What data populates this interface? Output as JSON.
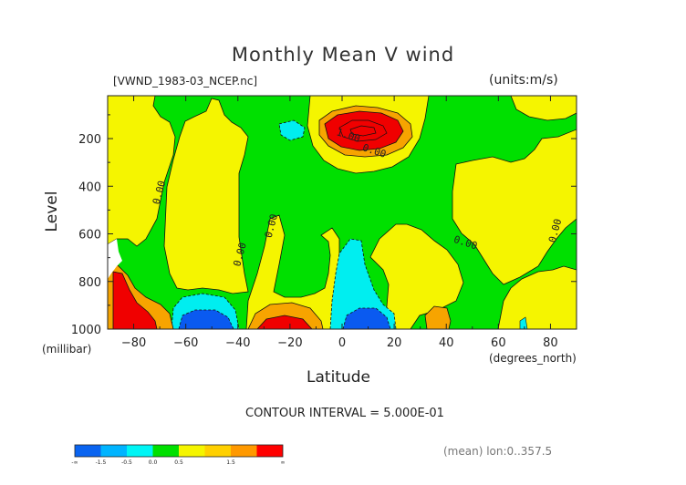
{
  "chart": {
    "title": "Monthly Mean V wind",
    "file_label": "[VWND_1983-03_NCEP.nc]",
    "units_label": "(units:m/s)",
    "ylabel": "Level",
    "yunit": "(millibar)",
    "xlabel": "Latitude",
    "xunit": "(degrees_north)",
    "contour_interval": "CONTOUR INTERVAL = 5.000E-01",
    "mean_lon": "(mean) lon:0..357.5"
  },
  "chart_data": {
    "type": "heatmap",
    "title": "Monthly Mean V wind",
    "xlabel": "Latitude",
    "ylabel": "Level",
    "x_unit": "degrees_north",
    "y_unit": "millibar",
    "units": "m/s",
    "xlim": [
      -90,
      90
    ],
    "ylim": [
      1000,
      20
    ],
    "y_reversed": true,
    "x_ticks": [
      -80,
      -60,
      -40,
      -20,
      0,
      20,
      40,
      60,
      80
    ],
    "x_tick_labels": [
      "−80",
      "−60",
      "−40",
      "−20",
      "0",
      "20",
      "40",
      "60",
      "80"
    ],
    "y_ticks": [
      200,
      400,
      600,
      800,
      1000
    ],
    "contour_interval": 0.5,
    "contour_labels": [
      {
        "text": "0.00",
        "lat": -69,
        "lev": 430
      },
      {
        "text": "0.00",
        "lat": -26,
        "lev": 570
      },
      {
        "text": "0.00",
        "lat": -38,
        "lev": 690
      },
      {
        "text": "1.00",
        "lat": 2,
        "lev": 200
      },
      {
        "text": "0.00",
        "lat": 12,
        "lev": 265
      },
      {
        "text": "0.00",
        "lat": 47,
        "lev": 650
      },
      {
        "text": "0.00",
        "lat": 83,
        "lev": 590
      }
    ],
    "features": [
      {
        "sign": "positive",
        "max_class": "> 1.5",
        "lat": 3,
        "lev": 170,
        "note": "upper-level northward jet core"
      },
      {
        "sign": "positive",
        "max_class": "> 1.5",
        "lat": -22,
        "lev": 990
      },
      {
        "sign": "positive",
        "max_class": "> 1.5",
        "lat": -84,
        "lev": 960
      },
      {
        "sign": "negative",
        "min_class": "< -1.5",
        "lat": -52,
        "lev": 990
      },
      {
        "sign": "negative",
        "min_class": "< -1.5",
        "lat": 7,
        "lev": 990
      }
    ],
    "colorbar": {
      "classes": [
        {
          "range": "< -1.5",
          "color": "#0a64f0"
        },
        {
          "range": "-1.5 to -1.0",
          "color": "#00b4ff"
        },
        {
          "range": "-1.0 to -0.5",
          "color": "#00f5f5"
        },
        {
          "range": "-0.5 to 0.0",
          "color": "#00e000"
        },
        {
          "range": "0.0 to 0.5",
          "color": "#f5f500"
        },
        {
          "range": "0.5 to 1.0",
          "color": "#ffd000"
        },
        {
          "range": "1.0 to 1.5",
          "color": "#ff9900"
        },
        {
          "range": "> 1.5",
          "color": "#ff0000"
        }
      ],
      "tick_labels": [
        "-∞",
        "-1.5",
        "-0.5",
        "0.0",
        "0.5",
        "1.5",
        "∞"
      ]
    },
    "colors": {
      "green": "#00e000",
      "yellow": "#f5f500",
      "orange": "#f7a400",
      "red": "#f00000",
      "cyan": "#00eef0",
      "blue": "#0a5af0",
      "contour": "#111111"
    }
  }
}
